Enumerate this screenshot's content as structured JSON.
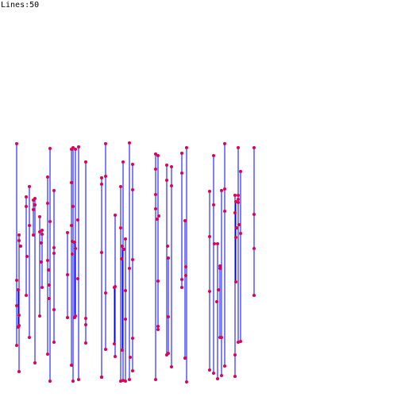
{
  "hud": {
    "label": "Lines:",
    "count": "50"
  },
  "colors": {
    "background": "#ffffff",
    "line": "#0000ff",
    "node": "#dd0055",
    "text": "#000000"
  }
}
